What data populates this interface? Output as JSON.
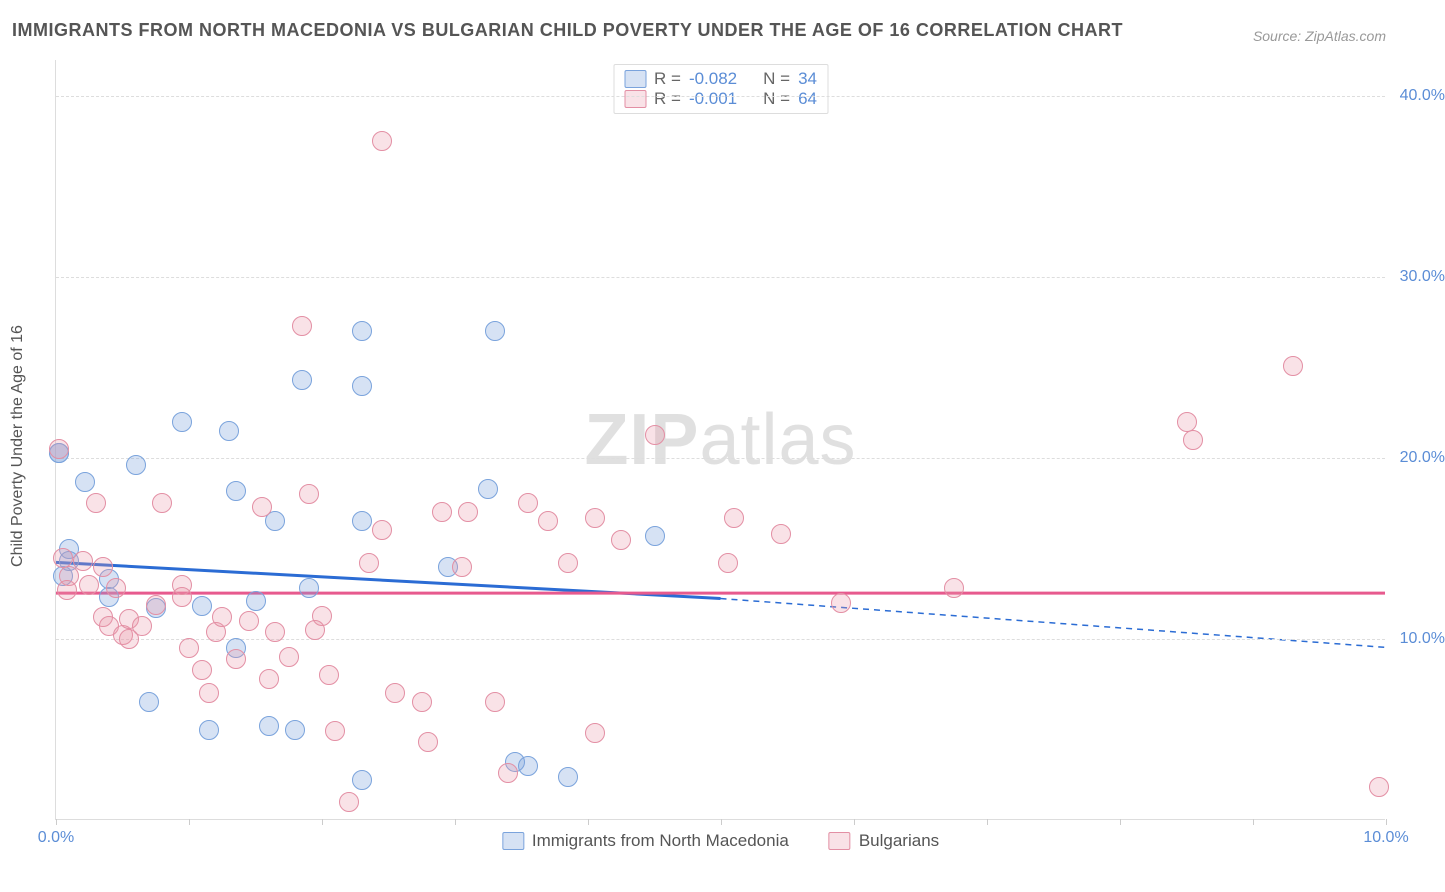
{
  "title": "IMMIGRANTS FROM NORTH MACEDONIA VS BULGARIAN CHILD POVERTY UNDER THE AGE OF 16 CORRELATION CHART",
  "source_label": "Source: ZipAtlas.com",
  "y_axis_label": "Child Poverty Under the Age of 16",
  "watermark": {
    "bold": "ZIP",
    "rest": "atlas"
  },
  "chart": {
    "type": "scatter",
    "background_color": "#ffffff",
    "grid_color": "#dddddd",
    "text_color": "#555555",
    "value_color": "#5b8dd6",
    "xlim": [
      0,
      10
    ],
    "ylim": [
      0,
      42
    ],
    "x_ticks": [
      0,
      1,
      2,
      3,
      4,
      5,
      6,
      7,
      8,
      9,
      10
    ],
    "x_tick_labels": {
      "0": "0.0%",
      "10": "10.0%"
    },
    "y_ticks": [
      10,
      20,
      30,
      40
    ],
    "y_tick_labels": {
      "10": "10.0%",
      "20": "20.0%",
      "30": "30.0%",
      "40": "40.0%"
    },
    "point_radius": 10,
    "series": [
      {
        "id": "macedonia",
        "label": "Immigrants from North Macedonia",
        "fill": "rgba(120,160,220,0.30)",
        "stroke": "#7aa3dc",
        "trend_color": "#2b6cd4",
        "trend_width": 3,
        "R": "-0.082",
        "N": "34",
        "trend_start": [
          0.0,
          14.2
        ],
        "trend_solid_end": [
          5.0,
          12.2
        ],
        "trend_dash_end": [
          10.0,
          9.5
        ],
        "points": [
          [
            0.02,
            20.3
          ],
          [
            0.02,
            20.3
          ],
          [
            0.22,
            18.7
          ],
          [
            0.1,
            14.3
          ],
          [
            0.6,
            19.6
          ],
          [
            0.95,
            22.0
          ],
          [
            1.35,
            18.2
          ],
          [
            1.3,
            21.5
          ],
          [
            0.4,
            12.3
          ],
          [
            0.75,
            11.7
          ],
          [
            1.1,
            11.8
          ],
          [
            1.5,
            12.1
          ],
          [
            1.65,
            16.5
          ],
          [
            1.85,
            24.3
          ],
          [
            1.9,
            12.8
          ],
          [
            2.3,
            27.0
          ],
          [
            2.3,
            24.0
          ],
          [
            2.3,
            16.5
          ],
          [
            2.95,
            14.0
          ],
          [
            3.25,
            18.3
          ],
          [
            3.3,
            27.0
          ],
          [
            4.5,
            15.7
          ],
          [
            0.7,
            6.5
          ],
          [
            1.15,
            5.0
          ],
          [
            1.35,
            9.5
          ],
          [
            1.6,
            5.2
          ],
          [
            1.8,
            5.0
          ],
          [
            2.3,
            2.2
          ],
          [
            3.45,
            3.2
          ],
          [
            3.55,
            3.0
          ],
          [
            3.85,
            2.4
          ],
          [
            0.4,
            13.3
          ],
          [
            0.1,
            15.0
          ],
          [
            0.05,
            13.5
          ]
        ]
      },
      {
        "id": "bulgarians",
        "label": "Bulgarians",
        "fill": "rgba(235,150,170,0.28)",
        "stroke": "#e38fa4",
        "trend_color": "#e75a8e",
        "trend_width": 3,
        "R": "-0.001",
        "N": "64",
        "trend_start": [
          0.0,
          12.5
        ],
        "trend_solid_end": [
          10.0,
          12.5
        ],
        "trend_dash_end": null,
        "points": [
          [
            0.02,
            20.5
          ],
          [
            0.05,
            14.5
          ],
          [
            0.1,
            13.5
          ],
          [
            0.2,
            14.3
          ],
          [
            0.25,
            13.0
          ],
          [
            0.3,
            17.5
          ],
          [
            0.35,
            11.2
          ],
          [
            0.4,
            10.7
          ],
          [
            0.45,
            12.8
          ],
          [
            0.5,
            10.2
          ],
          [
            0.55,
            11.1
          ],
          [
            0.65,
            10.7
          ],
          [
            0.75,
            11.9
          ],
          [
            0.8,
            17.5
          ],
          [
            0.95,
            13.0
          ],
          [
            1.0,
            9.5
          ],
          [
            1.1,
            8.3
          ],
          [
            1.2,
            10.4
          ],
          [
            1.25,
            11.2
          ],
          [
            1.35,
            8.9
          ],
          [
            1.45,
            11.0
          ],
          [
            1.55,
            17.3
          ],
          [
            1.6,
            7.8
          ],
          [
            1.65,
            10.4
          ],
          [
            1.85,
            27.3
          ],
          [
            1.9,
            18.0
          ],
          [
            2.0,
            11.3
          ],
          [
            2.05,
            8.0
          ],
          [
            2.1,
            4.9
          ],
          [
            2.2,
            1.0
          ],
          [
            2.35,
            14.2
          ],
          [
            2.45,
            16.0
          ],
          [
            2.45,
            37.5
          ],
          [
            2.55,
            7.0
          ],
          [
            2.75,
            6.5
          ],
          [
            2.8,
            4.3
          ],
          [
            2.9,
            17.0
          ],
          [
            3.05,
            14.0
          ],
          [
            3.1,
            17.0
          ],
          [
            3.3,
            6.5
          ],
          [
            3.4,
            2.6
          ],
          [
            3.7,
            16.5
          ],
          [
            3.85,
            14.2
          ],
          [
            4.05,
            4.8
          ],
          [
            4.05,
            16.7
          ],
          [
            4.25,
            15.5
          ],
          [
            4.5,
            21.3
          ],
          [
            5.05,
            14.2
          ],
          [
            5.1,
            16.7
          ],
          [
            5.45,
            15.8
          ],
          [
            5.9,
            12.0
          ],
          [
            6.75,
            12.8
          ],
          [
            8.5,
            22.0
          ],
          [
            8.55,
            21.0
          ],
          [
            9.3,
            25.1
          ],
          [
            9.95,
            1.8
          ],
          [
            0.55,
            10.0
          ],
          [
            0.95,
            12.3
          ],
          [
            1.15,
            7.0
          ],
          [
            1.75,
            9.0
          ],
          [
            1.95,
            10.5
          ],
          [
            0.08,
            12.7
          ],
          [
            0.35,
            14.0
          ],
          [
            3.55,
            17.5
          ]
        ]
      }
    ]
  },
  "legend_top": [
    {
      "series": 0,
      "R_label": "R =",
      "N_label": "N ="
    },
    {
      "series": 1,
      "R_label": "R =",
      "N_label": "N ="
    }
  ]
}
